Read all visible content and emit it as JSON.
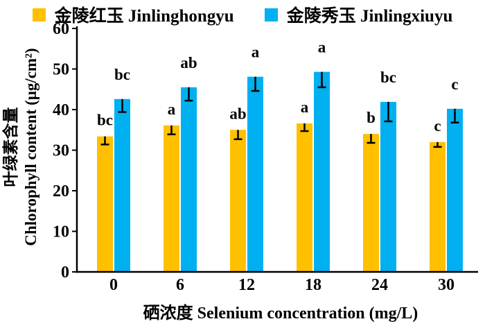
{
  "figure": {
    "background": "#ffffff",
    "text_color": "#000000"
  },
  "legend": {
    "items": [
      {
        "label": "金陵红玉 Jinlinghongyu",
        "color": "#FFC000"
      },
      {
        "label": "金陵秀玉 Jinlingxiuyu",
        "color": "#00B0F0"
      }
    ]
  },
  "chart_data": {
    "type": "bar",
    "title": "",
    "categories": [
      "0",
      "6",
      "12",
      "18",
      "24",
      "30"
    ],
    "xlabel": "硒浓度 Selenium concentration (mg/L)",
    "ylabel": "叶绿素含量 Chlorophyll content (μg/cm²)",
    "ylabel_lines": [
      "叶绿素含量",
      "Chlorophyll content (μg/cm²)"
    ],
    "ylim": [
      0,
      60
    ],
    "yticks": [
      0,
      10,
      20,
      30,
      40,
      50,
      60
    ],
    "grid": false,
    "legend_position": "top",
    "error_bar_direction": "down",
    "series": [
      {
        "name": "金陵红玉 Jinlinghongyu",
        "color": "#FFC000",
        "values": [
          33.4,
          36.1,
          35.0,
          36.6,
          34.0,
          32.0
        ],
        "errors": [
          2.0,
          2.2,
          2.3,
          1.9,
          2.2,
          1.2
        ],
        "sig_letters": [
          "bc",
          "a",
          "ab",
          "a",
          "b",
          "c"
        ]
      },
      {
        "name": "金陵秀玉 Jinlingxiuyu",
        "color": "#00B0F0",
        "values": [
          42.6,
          45.5,
          48.1,
          49.3,
          41.9,
          40.2
        ],
        "errors": [
          3.2,
          3.3,
          3.5,
          3.8,
          4.8,
          3.4
        ],
        "sig_letters": [
          "bc",
          "ab",
          "a",
          "a",
          "bc",
          "c"
        ]
      }
    ]
  }
}
